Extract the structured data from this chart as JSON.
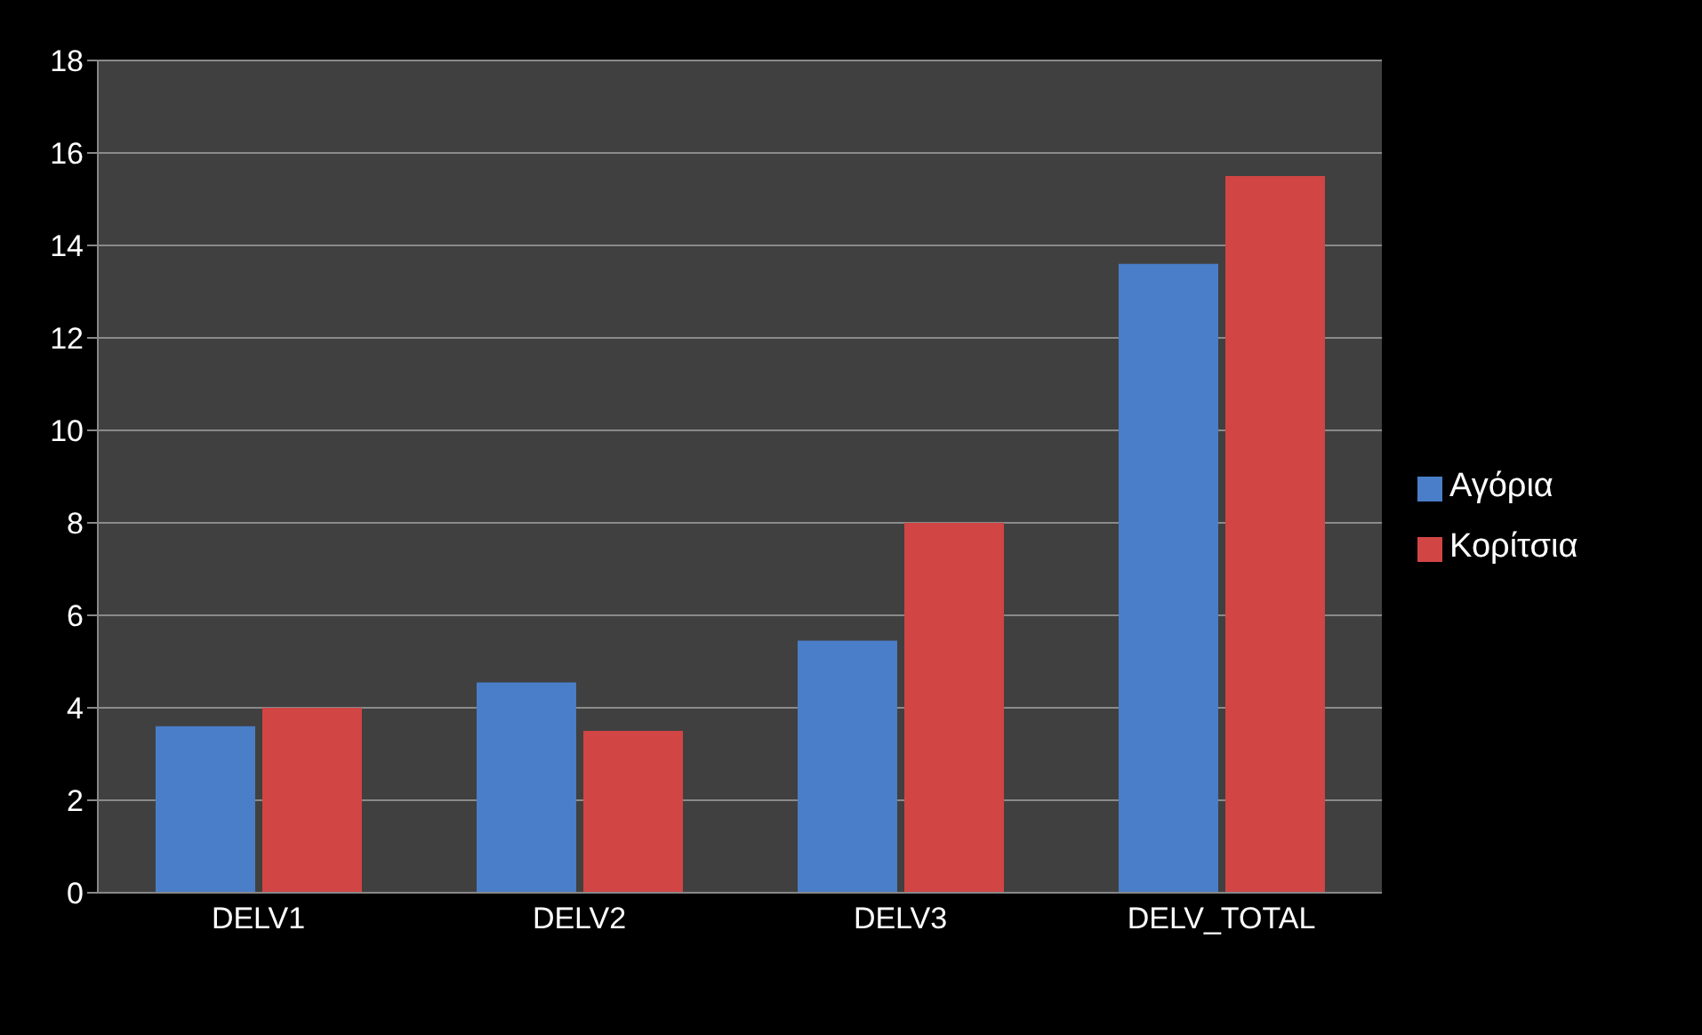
{
  "chart_data": {
    "type": "bar",
    "categories": [
      "DELV1",
      "DELV2",
      "DELV3",
      "DELV_TOTAL"
    ],
    "series": [
      {
        "name": "Αγόρια",
        "color": "#4a7ec8",
        "values": [
          3.6,
          4.55,
          5.45,
          13.6
        ]
      },
      {
        "name": "Κορίτσια",
        "color": "#d24545",
        "values": [
          4.0,
          3.5,
          8.0,
          15.5
        ]
      }
    ],
    "ylim": [
      0,
      18
    ],
    "yticks": [
      0,
      2,
      4,
      6,
      8,
      10,
      12,
      14,
      16,
      18
    ],
    "grid": "y",
    "legend": "right"
  }
}
